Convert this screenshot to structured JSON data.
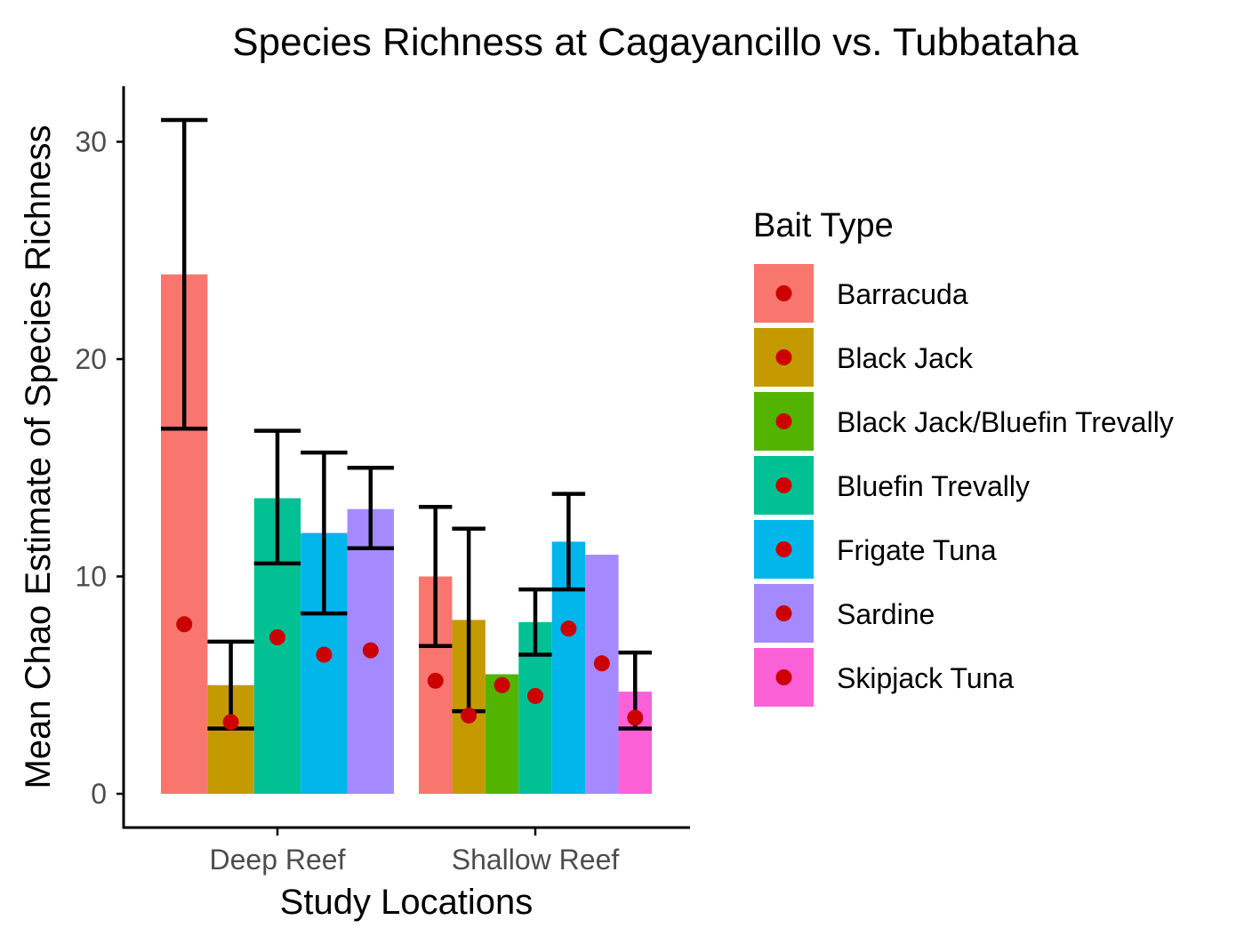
{
  "chart_data": {
    "type": "bar",
    "title": "Species Richness at Cagayancillo vs. Tubbataha",
    "xlabel": "Study Locations",
    "ylabel": "Mean Chao Estimate of Species Richness",
    "ylim": [
      0,
      32
    ],
    "yticks": [
      0,
      10,
      20,
      30
    ],
    "ytick_labels": [
      "0",
      "10",
      "20",
      "30"
    ],
    "categories": [
      "Deep Reef",
      "Shallow Reef"
    ],
    "grid": false,
    "legend": {
      "title": "Bait Type",
      "placement": "right",
      "entries": [
        "Barracuda",
        "Black Jack",
        "Black Jack/Bluefin Trevally",
        "Bluefin Trevally",
        "Frigate Tuna",
        "Sardine",
        "Skipjack Tuna"
      ]
    },
    "colors": {
      "Barracuda": "#F8766D",
      "Black Jack": "#C49A00",
      "Black Jack/Bluefin Trevally": "#53B400",
      "Bluefin Trevally": "#00C094",
      "Frigate Tuna": "#00B6EB",
      "Sardine": "#A58AFF",
      "Skipjack Tuna": "#FB61D7",
      "point": "#CC0000",
      "errorbar": "#000000"
    },
    "groups": [
      {
        "category": "Deep Reef",
        "bars": [
          {
            "bait": "Barracuda",
            "value": 23.9,
            "err_low": 16.8,
            "err_high": 31.0,
            "point": 7.8
          },
          {
            "bait": "Black Jack",
            "value": 5.0,
            "err_low": 3.0,
            "err_high": 7.0,
            "point": 3.3
          },
          {
            "bait": "Bluefin Trevally",
            "value": 13.6,
            "err_low": 10.6,
            "err_high": 16.7,
            "point": 7.2
          },
          {
            "bait": "Frigate Tuna",
            "value": 12.0,
            "err_low": 8.3,
            "err_high": 15.7,
            "point": 6.4
          },
          {
            "bait": "Sardine",
            "value": 13.1,
            "err_low": 11.3,
            "err_high": 15.0,
            "point": 6.6
          }
        ]
      },
      {
        "category": "Shallow Reef",
        "bars": [
          {
            "bait": "Barracuda",
            "value": 10.0,
            "err_low": 6.8,
            "err_high": 13.2,
            "point": 5.2
          },
          {
            "bait": "Black Jack",
            "value": 8.0,
            "err_low": 3.8,
            "err_high": 12.2,
            "point": 3.6
          },
          {
            "bait": "Black Jack/Bluefin Trevally",
            "value": 5.5,
            "err_low": null,
            "err_high": null,
            "point": 5.0
          },
          {
            "bait": "Bluefin Trevally",
            "value": 7.9,
            "err_low": 6.4,
            "err_high": 9.4,
            "point": 4.5
          },
          {
            "bait": "Frigate Tuna",
            "value": 11.6,
            "err_low": 9.4,
            "err_high": 13.8,
            "point": 7.6
          },
          {
            "bait": "Sardine",
            "value": 11.0,
            "err_low": null,
            "err_high": null,
            "point": 6.0
          },
          {
            "bait": "Skipjack Tuna",
            "value": 4.7,
            "err_low": 3.0,
            "err_high": 6.5,
            "point": 3.5
          }
        ]
      }
    ]
  }
}
